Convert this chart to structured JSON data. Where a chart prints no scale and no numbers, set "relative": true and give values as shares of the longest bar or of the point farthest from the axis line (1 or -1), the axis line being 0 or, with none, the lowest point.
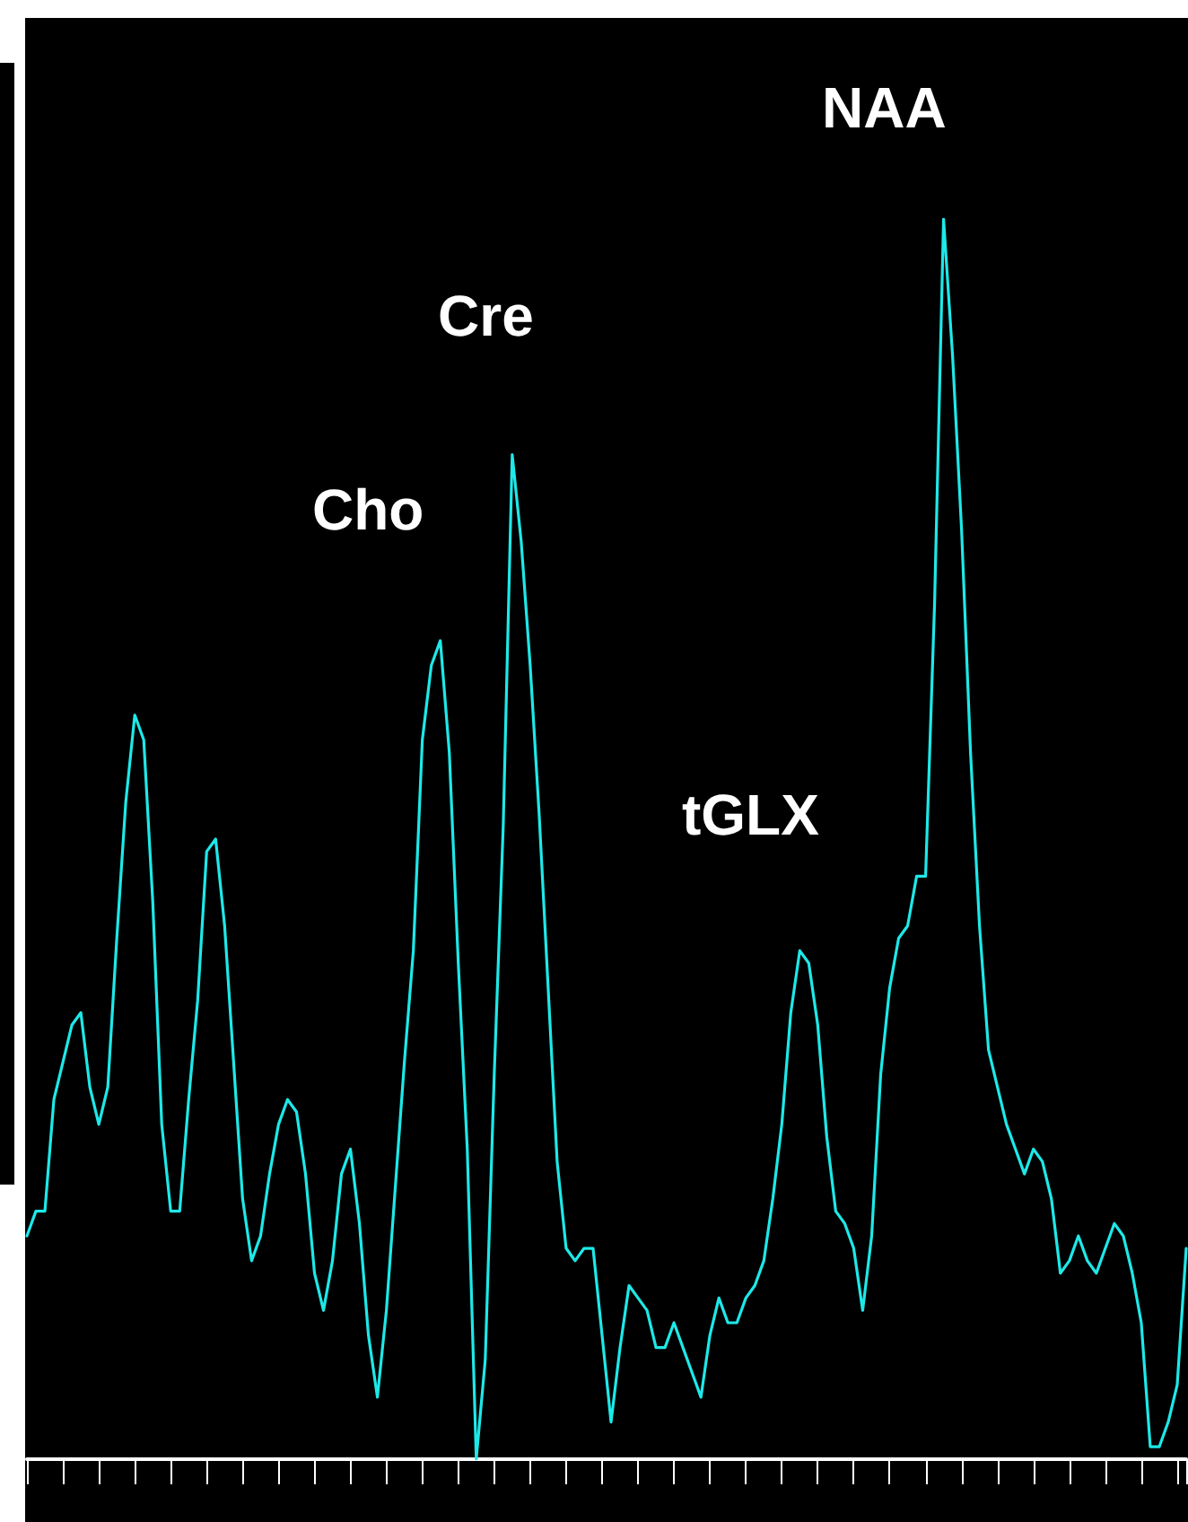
{
  "chart_data": {
    "type": "line",
    "relative": true,
    "tick_labels": false,
    "line_style": "solid",
    "annotations": [
      "Cho",
      "Cre",
      "tGLX",
      "NAA"
    ],
    "categories": [
      null,
      null,
      null,
      null,
      null,
      null,
      null,
      null,
      null,
      null,
      null,
      null,
      null,
      null,
      null,
      null,
      null,
      null,
      null,
      null,
      null,
      null,
      null,
      null,
      null,
      null,
      null,
      null,
      null,
      null,
      null,
      null,
      null,
      null,
      null,
      null,
      null,
      null,
      null,
      null,
      null,
      null,
      null,
      null,
      null,
      null,
      null,
      null,
      null,
      null,
      null,
      null,
      null,
      null,
      null,
      null,
      null,
      null,
      null,
      null,
      null,
      null,
      null,
      null,
      null,
      null,
      null,
      null,
      null,
      null,
      null,
      null,
      null,
      null,
      null,
      null,
      null,
      null,
      null,
      null,
      null,
      null,
      null,
      null,
      null,
      null,
      null,
      null,
      null,
      null,
      null,
      null,
      null,
      null,
      null,
      null,
      null,
      null,
      null,
      null,
      null,
      null,
      null,
      null,
      null,
      null,
      null,
      null,
      null,
      null,
      null,
      null,
      null,
      null,
      null,
      null,
      null,
      null,
      null,
      null,
      null,
      null,
      null,
      null,
      null,
      null,
      null,
      null,
      null,
      null
    ],
    "series": [
      {
        "color": "#1ee8e8",
        "values": [
          0.18,
          0.2,
          0.2,
          0.29,
          0.32,
          0.35,
          0.36,
          0.3,
          0.27,
          0.3,
          0.42,
          0.53,
          0.6,
          0.58,
          0.45,
          0.27,
          0.2,
          0.2,
          0.29,
          0.37,
          0.49,
          0.5,
          0.43,
          0.32,
          0.21,
          0.16,
          0.18,
          0.23,
          0.27,
          0.29,
          0.28,
          0.23,
          0.15,
          0.12,
          0.16,
          0.23,
          0.25,
          0.19,
          0.1,
          0.05,
          0.12,
          0.22,
          0.32,
          0.41,
          0.58,
          0.64,
          0.66,
          0.57,
          0.4,
          0.25,
          0.0,
          0.08,
          0.31,
          0.51,
          0.81,
          0.74,
          0.64,
          0.52,
          0.38,
          0.24,
          0.17,
          0.16,
          0.17,
          0.17,
          0.1,
          0.03,
          0.09,
          0.14,
          0.13,
          0.12,
          0.09,
          0.09,
          0.11,
          0.09,
          0.07,
          0.05,
          0.1,
          0.13,
          0.11,
          0.11,
          0.13,
          0.14,
          0.16,
          0.21,
          0.27,
          0.36,
          0.41,
          0.4,
          0.35,
          0.26,
          0.2,
          0.19,
          0.17,
          0.12,
          0.18,
          0.31,
          0.38,
          0.42,
          0.43,
          0.47,
          0.47,
          0.69,
          1.0,
          0.89,
          0.75,
          0.57,
          0.43,
          0.33,
          0.3,
          0.27,
          0.25,
          0.23,
          0.25,
          0.24,
          0.21,
          0.15,
          0.16,
          0.18,
          0.16,
          0.15,
          0.17,
          0.19,
          0.18,
          0.15,
          0.11,
          0.01,
          0.01,
          0.03,
          0.06,
          0.17
        ]
      }
    ]
  }
}
